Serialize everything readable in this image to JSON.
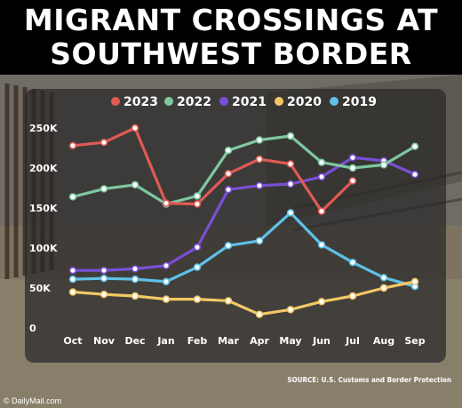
{
  "title": {
    "line1": "MIGRANT CROSSINGS AT",
    "line2": "SOUTHWEST BORDER"
  },
  "source": "SOURCE: U.S. Customs and Border Protection",
  "logo": "© DailyMail.com",
  "chart_data": {
    "type": "line",
    "categories": [
      "Oct",
      "Nov",
      "Dec",
      "Jan",
      "Feb",
      "Mar",
      "Apr",
      "May",
      "Jun",
      "Jul",
      "Aug",
      "Sep"
    ],
    "ylim": [
      0,
      250000
    ],
    "yticks": [
      0,
      50000,
      100000,
      150000,
      200000,
      250000
    ],
    "ytick_labels": [
      "0",
      "50K",
      "100K",
      "150K",
      "200K",
      "250K"
    ],
    "grid": false,
    "legend_position": "top",
    "series": [
      {
        "name": "2023",
        "color": "#e05a55",
        "values": [
          228000,
          232000,
          250000,
          156000,
          155000,
          193000,
          211000,
          205000,
          146000,
          184000,
          null,
          null
        ]
      },
      {
        "name": "2022",
        "color": "#7fc8a0",
        "values": [
          164000,
          174000,
          179000,
          155000,
          165000,
          222000,
          235000,
          240000,
          207000,
          200000,
          204000,
          227000
        ]
      },
      {
        "name": "2021",
        "color": "#7a4fd6",
        "values": [
          72000,
          72000,
          74000,
          78000,
          101000,
          173000,
          178000,
          180000,
          189000,
          213000,
          209000,
          192000
        ]
      },
      {
        "name": "2020",
        "color": "#f2c766",
        "values": [
          45000,
          42000,
          40000,
          36000,
          36000,
          34000,
          17000,
          23000,
          33000,
          40000,
          50000,
          58000
        ]
      },
      {
        "name": "2019",
        "color": "#5fc0e8",
        "values": [
          61000,
          62000,
          61000,
          58000,
          76000,
          103000,
          109000,
          144000,
          104000,
          82000,
          63000,
          52000
        ]
      }
    ]
  }
}
